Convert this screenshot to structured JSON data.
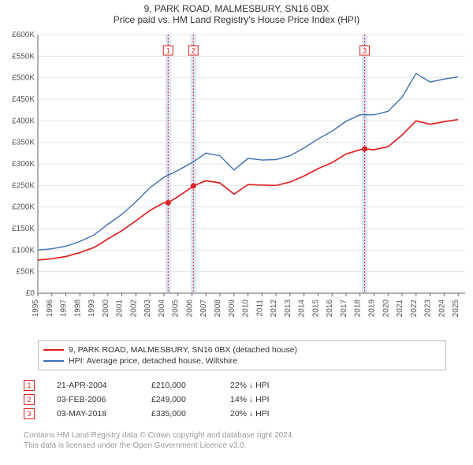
{
  "title": "9, PARK ROAD, MALMESBURY, SN16 0BX",
  "subtitle": "Price paid vs. HM Land Registry's House Price Index (HPI)",
  "chart": {
    "type": "line",
    "background_color": "#ffffff",
    "grid_color": "#e6e6e6",
    "axis_color": "#666666",
    "tick_fontsize": 10,
    "xlim": [
      1995,
      2025.5
    ],
    "ylim": [
      0,
      600000
    ],
    "ytick_step": 50000,
    "ytick_prefix": "£",
    "ytick_suffix": "K",
    "yticks": [
      "£0",
      "£50K",
      "£100K",
      "£150K",
      "£200K",
      "£250K",
      "£300K",
      "£350K",
      "£400K",
      "£450K",
      "£500K",
      "£550K",
      "£600K"
    ],
    "xticks": [
      "1995",
      "1996",
      "1997",
      "1998",
      "1999",
      "2000",
      "2001",
      "2002",
      "2003",
      "2004",
      "2005",
      "2006",
      "2007",
      "2008",
      "2009",
      "2010",
      "2011",
      "2012",
      "2013",
      "2014",
      "2015",
      "2016",
      "2017",
      "2018",
      "2019",
      "2020",
      "2021",
      "2022",
      "2023",
      "2024",
      "2025"
    ],
    "xtick_rotation": 90,
    "series": [
      {
        "name": "9, PARK ROAD, MALMESBURY, SN16 0BX (detached house)",
        "color": "#dd2222",
        "line_width": 1.7,
        "x": [
          1995,
          1996,
          1997,
          1998,
          1999,
          2000,
          2001,
          2002,
          2003,
          2004,
          2004.3,
          2005,
          2006,
          2006.1,
          2007,
          2008,
          2009,
          2010,
          2011,
          2012,
          2013,
          2014,
          2015,
          2016,
          2017,
          2018,
          2018.33,
          2019,
          2020,
          2021,
          2022,
          2023,
          2024,
          2025
        ],
        "y": [
          77000,
          80000,
          85000,
          94000,
          106000,
          126000,
          145000,
          168000,
          192000,
          210000,
          210000,
          224000,
          246000,
          249000,
          261000,
          256000,
          230000,
          252000,
          251000,
          250000,
          258000,
          272000,
          289000,
          303000,
          323000,
          333000,
          335000,
          333000,
          340000,
          367000,
          400000,
          392000,
          398000,
          403000
        ]
      },
      {
        "name": "HPI: Average price, detached house, Wiltshire",
        "color": "#3b6fb6",
        "line_width": 1.4,
        "x": [
          1995,
          1996,
          1997,
          1998,
          1999,
          2000,
          2001,
          2002,
          2003,
          2004,
          2005,
          2006,
          2007,
          2008,
          2009,
          2010,
          2011,
          2012,
          2013,
          2014,
          2015,
          2016,
          2017,
          2018,
          2019,
          2020,
          2021,
          2022,
          2023,
          2024,
          2025
        ],
        "y": [
          100000,
          103000,
          109000,
          120000,
          135000,
          160000,
          183000,
          212000,
          245000,
          269000,
          285000,
          303000,
          325000,
          319000,
          286000,
          313000,
          309000,
          310000,
          319000,
          337000,
          358000,
          376000,
          399000,
          414000,
          414000,
          422000,
          455000,
          510000,
          490000,
          497000,
          502000
        ]
      }
    ],
    "markers": [
      {
        "label": "1",
        "x": 2004.3,
        "y": 210000,
        "line_color": "#dd2222",
        "band_start": 2004.1,
        "band_end": 2004.5,
        "band_color": "#dbe6f4"
      },
      {
        "label": "2",
        "x": 2006.1,
        "y": 249000,
        "line_color": "#dd2222",
        "band_start": 2005.9,
        "band_end": 2006.3,
        "band_color": "#dbe6f4"
      },
      {
        "label": "3",
        "x": 2018.33,
        "y": 335000,
        "line_color": "#dd2222",
        "band_start": 2018.13,
        "band_end": 2018.53,
        "band_color": "#dbe6f4"
      }
    ],
    "marker_point_color": "#dd2222",
    "marker_point_radius": 3.5,
    "marker_box_border": "#dd2222",
    "marker_box_text_color": "#dd2222",
    "marker_dash": "2,2"
  },
  "legend": {
    "items": [
      {
        "color": "#dd2222",
        "label": "9, PARK ROAD, MALMESBURY, SN16 0BX (detached house)"
      },
      {
        "color": "#3b6fb6",
        "label": "HPI: Average price, detached house, Wiltshire"
      }
    ]
  },
  "events": [
    {
      "num": "1",
      "date": "21-APR-2004",
      "price": "£210,000",
      "diff": "22% ↓ HPI"
    },
    {
      "num": "2",
      "date": "03-FEB-2006",
      "price": "£249,000",
      "diff": "14% ↓ HPI"
    },
    {
      "num": "3",
      "date": "03-MAY-2018",
      "price": "£335,000",
      "diff": "20% ↓ HPI"
    }
  ],
  "footer": {
    "line1": "Contains HM Land Registry data © Crown copyright and database right 2024.",
    "line2": "This data is licensed under the Open Government Licence v3.0."
  }
}
